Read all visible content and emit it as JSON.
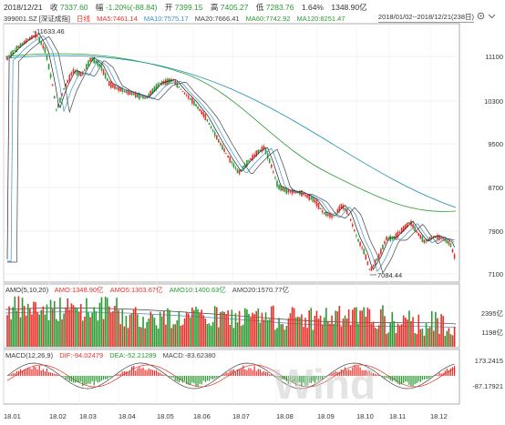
{
  "header": {
    "date": "2018/12/21",
    "close_label": "收",
    "close": "7337.60",
    "change_label": "幅",
    "change": "-1.20%(-88.84)",
    "open_label": "开",
    "open": "7399.15",
    "high_label": "高",
    "high": "7405.27",
    "low_label": "低",
    "low": "7283.76",
    "turnover": "1.64%",
    "amount": "1348.90亿"
  },
  "legend": {
    "code": "399001.SZ [深证成指]",
    "period": "日线",
    "ma5": "MA5:7461.14",
    "ma10": "MA10:7575.17",
    "ma20": "MA20:7666.41",
    "ma60": "MA60:7742.92",
    "ma120": "MA120:8251.47"
  },
  "date_range": "2018/01/02--2018/12/21(238日)",
  "icons": [
    "settings-icon",
    "dropdown-icon"
  ],
  "colors": {
    "up": "#e8302a",
    "down": "#2a9a33",
    "ma5": "#222222",
    "ma10": "#e8a300",
    "ma20": "#0000cc",
    "ma60": "#2a9a33",
    "ma120": "#1a8fb0",
    "ma_main": "#444444",
    "ma_long": "#3a8fd0"
  },
  "annotations": {
    "high": "11633.46",
    "low": "7084.44"
  },
  "price_axis": [
    "11100",
    "10300",
    "9500",
    "8700",
    "7900",
    "7100"
  ],
  "volume_legend": {
    "title": "AMO(5,10,20)",
    "amo": "AMO:1348.90亿",
    "amo5": "AMO5:1303.67亿",
    "amo10": "AMO10:1400.63亿",
    "amo20": "AMO20:1570.77亿"
  },
  "volume_axis": [
    "2395亿",
    "1198亿"
  ],
  "macd_legend": {
    "title": "MACD(12,26,9)",
    "dif": "DIF:-94.02479",
    "dea": "DEA:-52.21289",
    "macd": "MACD:-83.62380"
  },
  "macd_axis": [
    "173.2415",
    "-87.17921"
  ],
  "x_axis": [
    "18.01",
    "18.02",
    "18.03",
    "18.04",
    "18.05",
    "18.06",
    "18.07",
    "18.08",
    "18.09",
    "18.10",
    "18.11",
    "18.12"
  ],
  "watermark": "Wind"
}
